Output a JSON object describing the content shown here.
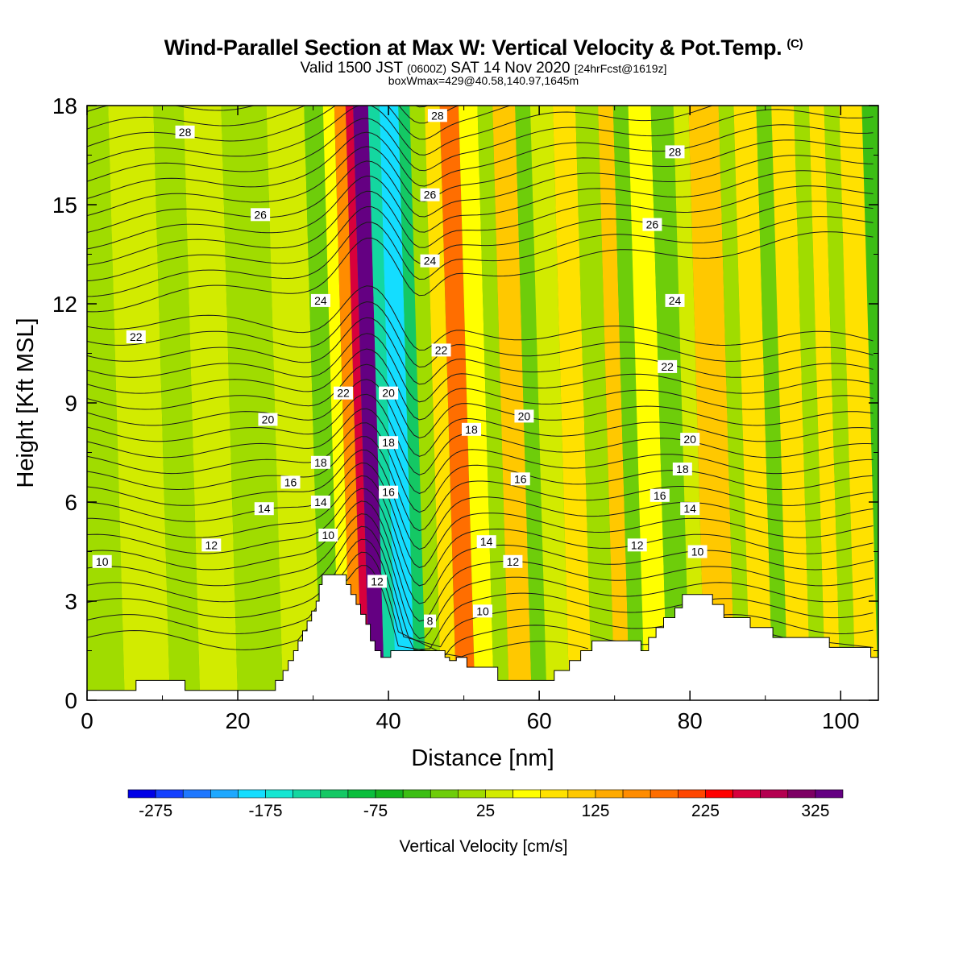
{
  "header": {
    "title": "Wind-Parallel Section at Max W: Vertical Velocity & Pot.Temp.",
    "title_mark": "(C)",
    "valid_prefix": "Valid 1500 JST",
    "valid_utc": "(0600Z)",
    "valid_date": "SAT 14 Nov 2020",
    "forecast": "[24hrFcst@1619z]",
    "boxwmax": "boxWmax=429@40.58,140.97,1645m"
  },
  "chart_data": {
    "type": "heatmap",
    "xlabel": "Distance [nm]",
    "ylabel": "Height [Kft MSL]",
    "xlim": [
      0,
      105
    ],
    "ylim": [
      0,
      18
    ],
    "xticks": [
      "0",
      "20",
      "40",
      "60",
      "80",
      "100"
    ],
    "yticks": [
      "0",
      "3",
      "6",
      "9",
      "12",
      "15",
      "18"
    ],
    "colorbar": {
      "label": "Vertical Velocity [cm/s]",
      "ticks": [
        "-275",
        "-175",
        "-75",
        "25",
        "125",
        "225",
        "325"
      ],
      "levels_start": -300,
      "level_step": 25,
      "colors": [
        "#0000e6",
        "#1440ff",
        "#1f78ff",
        "#1ea8ff",
        "#14ddff",
        "#14e6d2",
        "#14d7a0",
        "#14c864",
        "#0abe3c",
        "#14b41e",
        "#3cbe14",
        "#6ecd0a",
        "#a0dc00",
        "#d2eb00",
        "#ffff00",
        "#ffe100",
        "#ffc800",
        "#ffaa00",
        "#ff8c00",
        "#ff6e00",
        "#ff4600",
        "#ff0000",
        "#d7003c",
        "#b40050",
        "#7d0064",
        "#640082"
      ]
    },
    "terrain": [
      {
        "x": 0,
        "h": 0.3
      },
      {
        "x": 6.5,
        "h": 0.3
      },
      {
        "x": 6.5,
        "h": 0.6
      },
      {
        "x": 13,
        "h": 0.6
      },
      {
        "x": 13,
        "h": 0.3
      },
      {
        "x": 25,
        "h": 0.3
      },
      {
        "x": 25,
        "h": 0.6
      },
      {
        "x": 26,
        "h": 0.6
      },
      {
        "x": 26,
        "h": 0.9
      },
      {
        "x": 26.7,
        "h": 0.9
      },
      {
        "x": 26.7,
        "h": 1.2
      },
      {
        "x": 27.4,
        "h": 1.2
      },
      {
        "x": 27.4,
        "h": 1.5
      },
      {
        "x": 28,
        "h": 1.5
      },
      {
        "x": 28,
        "h": 1.8
      },
      {
        "x": 28.6,
        "h": 1.8
      },
      {
        "x": 28.6,
        "h": 2.1
      },
      {
        "x": 29.2,
        "h": 2.1
      },
      {
        "x": 29.2,
        "h": 2.4
      },
      {
        "x": 29.8,
        "h": 2.4
      },
      {
        "x": 29.8,
        "h": 2.7
      },
      {
        "x": 30.4,
        "h": 2.7
      },
      {
        "x": 30.4,
        "h": 3.0
      },
      {
        "x": 30.8,
        "h": 3.0
      },
      {
        "x": 30.8,
        "h": 3.5
      },
      {
        "x": 31.2,
        "h": 3.5
      },
      {
        "x": 31.2,
        "h": 3.8
      },
      {
        "x": 34.4,
        "h": 3.8
      },
      {
        "x": 34.4,
        "h": 3.5
      },
      {
        "x": 35.0,
        "h": 3.5
      },
      {
        "x": 35.0,
        "h": 3.2
      },
      {
        "x": 35.7,
        "h": 3.2
      },
      {
        "x": 35.7,
        "h": 2.9
      },
      {
        "x": 36.3,
        "h": 2.9
      },
      {
        "x": 36.3,
        "h": 2.6
      },
      {
        "x": 37.0,
        "h": 2.6
      },
      {
        "x": 37.0,
        "h": 2.3
      },
      {
        "x": 37.6,
        "h": 2.3
      },
      {
        "x": 37.6,
        "h": 1.8
      },
      {
        "x": 38.2,
        "h": 1.8
      },
      {
        "x": 38.2,
        "h": 1.5
      },
      {
        "x": 39.0,
        "h": 1.5
      },
      {
        "x": 39.0,
        "h": 1.3
      },
      {
        "x": 40.3,
        "h": 1.3
      },
      {
        "x": 40.3,
        "h": 1.5
      },
      {
        "x": 47.5,
        "h": 1.5
      },
      {
        "x": 47.5,
        "h": 1.3
      },
      {
        "x": 48.1,
        "h": 1.3
      },
      {
        "x": 48.1,
        "h": 1.2
      },
      {
        "x": 49.0,
        "h": 1.2
      },
      {
        "x": 49.0,
        "h": 1.3
      },
      {
        "x": 50.4,
        "h": 1.3
      },
      {
        "x": 50.4,
        "h": 1.0
      },
      {
        "x": 54.5,
        "h": 1.0
      },
      {
        "x": 54.5,
        "h": 0.6
      },
      {
        "x": 62.0,
        "h": 0.6
      },
      {
        "x": 62.0,
        "h": 0.9
      },
      {
        "x": 64.0,
        "h": 0.9
      },
      {
        "x": 64.0,
        "h": 1.2
      },
      {
        "x": 65.5,
        "h": 1.2
      },
      {
        "x": 65.5,
        "h": 1.5
      },
      {
        "x": 67.0,
        "h": 1.5
      },
      {
        "x": 67.0,
        "h": 1.8
      },
      {
        "x": 73.5,
        "h": 1.8
      },
      {
        "x": 73.5,
        "h": 1.5
      },
      {
        "x": 74.5,
        "h": 1.5
      },
      {
        "x": 74.5,
        "h": 1.9
      },
      {
        "x": 75.5,
        "h": 1.9
      },
      {
        "x": 75.5,
        "h": 2.2
      },
      {
        "x": 76.5,
        "h": 2.2
      },
      {
        "x": 76.5,
        "h": 2.5
      },
      {
        "x": 78.0,
        "h": 2.5
      },
      {
        "x": 78.0,
        "h": 2.8
      },
      {
        "x": 79.0,
        "h": 2.8
      },
      {
        "x": 79.0,
        "h": 3.2
      },
      {
        "x": 83.0,
        "h": 3.2
      },
      {
        "x": 83.0,
        "h": 2.9
      },
      {
        "x": 84.5,
        "h": 2.9
      },
      {
        "x": 84.5,
        "h": 2.5
      },
      {
        "x": 88.0,
        "h": 2.5
      },
      {
        "x": 88.0,
        "h": 2.2
      },
      {
        "x": 91.0,
        "h": 2.2
      },
      {
        "x": 91.0,
        "h": 1.9
      },
      {
        "x": 98.5,
        "h": 1.9
      },
      {
        "x": 98.5,
        "h": 1.6
      },
      {
        "x": 104.0,
        "h": 1.6
      },
      {
        "x": 104.0,
        "h": 1.3
      },
      {
        "x": 105.0,
        "h": 1.3
      }
    ],
    "velocity_bands": [
      {
        "x0": 0,
        "x1": 5,
        "w": 0
      },
      {
        "x0": 5,
        "x1": 11,
        "w": 25
      },
      {
        "x0": 11,
        "x1": 15,
        "w": 0
      },
      {
        "x0": 15,
        "x1": 20,
        "w": 25
      },
      {
        "x0": 20,
        "x1": 26,
        "w": 0
      },
      {
        "x0": 26,
        "x1": 31,
        "w": 25
      },
      {
        "x0": 31,
        "x1": 33.5,
        "w": -25
      },
      {
        "x0": 33.5,
        "x1": 35,
        "w": 50
      },
      {
        "x0": 35,
        "x1": 36.5,
        "w": 150
      },
      {
        "x0": 36.5,
        "x1": 37.5,
        "w": 250
      },
      {
        "x0": 37.5,
        "x1": 39.5,
        "w": 325
      },
      {
        "x0": 39.5,
        "x1": 41,
        "w": -150
      },
      {
        "x0": 41,
        "x1": 43.5,
        "w": -200
      },
      {
        "x0": 43.5,
        "x1": 45,
        "w": -125
      },
      {
        "x0": 45,
        "x1": 47,
        "w": 0
      },
      {
        "x0": 47,
        "x1": 49,
        "w": 75
      },
      {
        "x0": 49,
        "x1": 51.5,
        "w": 175
      },
      {
        "x0": 51.5,
        "x1": 54,
        "w": 50
      },
      {
        "x0": 54,
        "x1": 56,
        "w": 0
      },
      {
        "x0": 56,
        "x1": 59,
        "w": 100
      },
      {
        "x0": 59,
        "x1": 61,
        "w": -25
      },
      {
        "x0": 61,
        "x1": 64,
        "w": 25
      },
      {
        "x0": 64,
        "x1": 67,
        "w": 75
      },
      {
        "x0": 67,
        "x1": 70,
        "w": 0
      },
      {
        "x0": 70,
        "x1": 72,
        "w": 100
      },
      {
        "x0": 72,
        "x1": 74,
        "w": -25
      },
      {
        "x0": 74,
        "x1": 77,
        "w": 50
      },
      {
        "x0": 77,
        "x1": 80,
        "w": -25
      },
      {
        "x0": 80,
        "x1": 82,
        "w": 25
      },
      {
        "x0": 82,
        "x1": 86,
        "w": 100
      },
      {
        "x0": 86,
        "x1": 88,
        "w": 0
      },
      {
        "x0": 88,
        "x1": 91,
        "w": 75
      },
      {
        "x0": 91,
        "x1": 93,
        "w": -25
      },
      {
        "x0": 93,
        "x1": 96,
        "w": 75
      },
      {
        "x0": 96,
        "x1": 98,
        "w": 0
      },
      {
        "x0": 98,
        "x1": 100,
        "w": 75
      },
      {
        "x0": 100,
        "x1": 102,
        "w": 0
      },
      {
        "x0": 102,
        "x1": 105,
        "w": 75
      }
    ],
    "contour_labels": [
      {
        "text": "28",
        "x": 13,
        "y": 17.2
      },
      {
        "text": "28",
        "x": 46.5,
        "y": 17.7
      },
      {
        "text": "28",
        "x": 78,
        "y": 16.6
      },
      {
        "text": "26",
        "x": 23,
        "y": 14.7
      },
      {
        "text": "26",
        "x": 45.5,
        "y": 15.3
      },
      {
        "text": "26",
        "x": 75,
        "y": 14.4
      },
      {
        "text": "24",
        "x": 31,
        "y": 12.1
      },
      {
        "text": "24",
        "x": 45.5,
        "y": 13.3
      },
      {
        "text": "24",
        "x": 78,
        "y": 12.1
      },
      {
        "text": "22",
        "x": 6.5,
        "y": 11.0
      },
      {
        "text": "22",
        "x": 47,
        "y": 10.6
      },
      {
        "text": "22",
        "x": 77,
        "y": 10.1
      },
      {
        "text": "22",
        "x": 34,
        "y": 9.3
      },
      {
        "text": "20",
        "x": 40,
        "y": 9.3
      },
      {
        "text": "20",
        "x": 24,
        "y": 8.5
      },
      {
        "text": "20",
        "x": 58,
        "y": 8.6
      },
      {
        "text": "20",
        "x": 80,
        "y": 7.9
      },
      {
        "text": "18",
        "x": 51,
        "y": 8.2
      },
      {
        "text": "18",
        "x": 40,
        "y": 7.8
      },
      {
        "text": "18",
        "x": 31,
        "y": 7.2
      },
      {
        "text": "18",
        "x": 79,
        "y": 7.0
      },
      {
        "text": "16",
        "x": 27,
        "y": 6.6
      },
      {
        "text": "16",
        "x": 40,
        "y": 6.3
      },
      {
        "text": "16",
        "x": 57.5,
        "y": 6.7
      },
      {
        "text": "16",
        "x": 76,
        "y": 6.2
      },
      {
        "text": "14",
        "x": 23.5,
        "y": 5.8
      },
      {
        "text": "14",
        "x": 31,
        "y": 6.0
      },
      {
        "text": "14",
        "x": 53,
        "y": 4.8
      },
      {
        "text": "14",
        "x": 80,
        "y": 5.8
      },
      {
        "text": "12",
        "x": 16.5,
        "y": 4.7
      },
      {
        "text": "12",
        "x": 38.5,
        "y": 3.6
      },
      {
        "text": "12",
        "x": 56.5,
        "y": 4.2
      },
      {
        "text": "12",
        "x": 73,
        "y": 4.7
      },
      {
        "text": "10",
        "x": 2,
        "y": 4.2
      },
      {
        "text": "10",
        "x": 32,
        "y": 5.0
      },
      {
        "text": "10",
        "x": 52.5,
        "y": 2.7
      },
      {
        "text": "10",
        "x": 81,
        "y": 4.5
      },
      {
        "text": "8",
        "x": 45.5,
        "y": 2.4
      }
    ]
  }
}
